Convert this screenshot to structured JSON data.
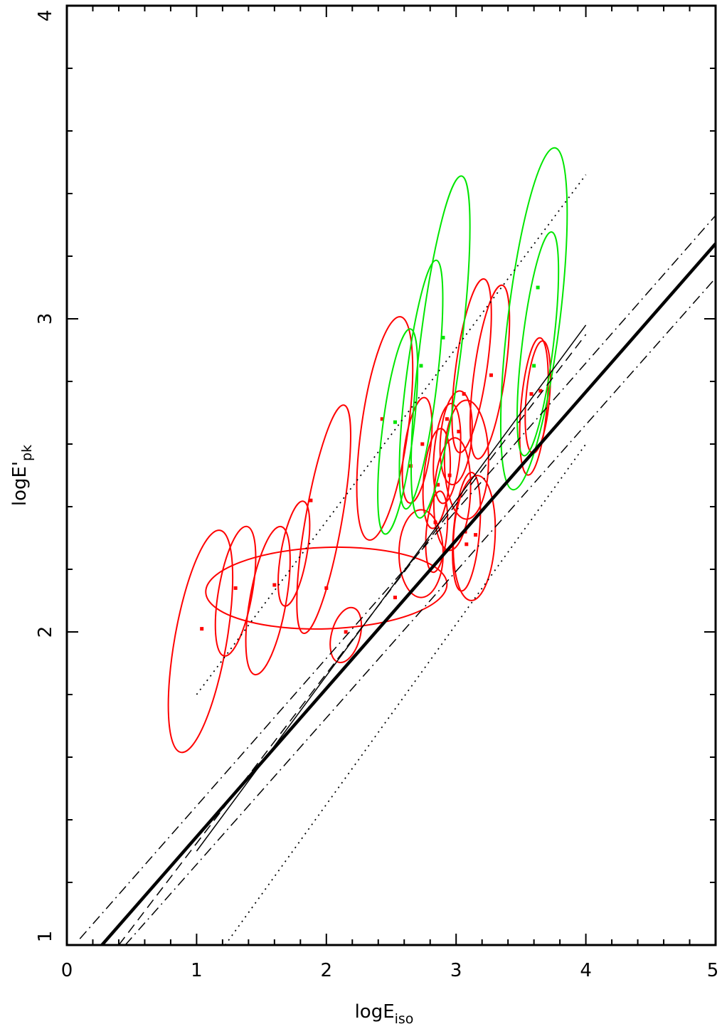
{
  "chart_data": {
    "type": "scatter",
    "title": "",
    "xlabel": "logE",
    "xlabel_sub": "iso",
    "ylabel": "logE'",
    "ylabel_sub": "pk",
    "xlim": [
      0,
      5
    ],
    "ylim": [
      1,
      4
    ],
    "x_ticks": [
      "0",
      "1",
      "2",
      "3",
      "4",
      "5"
    ],
    "y_ticks": [
      "1",
      "2",
      "3",
      "4"
    ],
    "grid": false,
    "colors": {
      "red": "#ff0000",
      "green": "#00e600",
      "black": "#000000"
    },
    "lines": [
      {
        "style": "thick-solid",
        "x": [
          0.27,
          5.0
        ],
        "y": [
          1.0,
          3.24
        ]
      },
      {
        "style": "thin-solid",
        "x": [
          1.0,
          4.0
        ],
        "y": [
          1.3,
          2.98
        ]
      },
      {
        "style": "dash",
        "x": [
          0.4,
          4.0
        ],
        "y": [
          1.0,
          2.95
        ]
      },
      {
        "style": "dash-dot",
        "x": [
          0.1,
          5.0
        ],
        "y": [
          1.02,
          3.33
        ]
      },
      {
        "style": "dash-dot",
        "x": [
          0.45,
          5.0
        ],
        "y": [
          1.0,
          3.13
        ]
      },
      {
        "style": "dot",
        "x": [
          1.0,
          4.0
        ],
        "y": [
          1.8,
          3.46
        ]
      },
      {
        "style": "dot",
        "x": [
          1.22,
          4.0
        ],
        "y": [
          1.0,
          2.6
        ]
      }
    ],
    "series": [
      {
        "color": "red",
        "points": [
          {
            "x": 1.04,
            "y": 2.01
          },
          {
            "x": 1.3,
            "y": 2.14
          },
          {
            "x": 1.6,
            "y": 2.15
          },
          {
            "x": 1.88,
            "y": 2.42
          },
          {
            "x": 2.0,
            "y": 2.14
          },
          {
            "x": 2.15,
            "y": 2.0
          },
          {
            "x": 2.53,
            "y": 2.11
          },
          {
            "x": 2.43,
            "y": 2.68
          },
          {
            "x": 2.65,
            "y": 2.53
          },
          {
            "x": 2.74,
            "y": 2.6
          },
          {
            "x": 2.84,
            "y": 2.35
          },
          {
            "x": 2.86,
            "y": 2.47
          },
          {
            "x": 2.93,
            "y": 2.68
          },
          {
            "x": 2.95,
            "y": 2.5
          },
          {
            "x": 3.02,
            "y": 2.64
          },
          {
            "x": 3.06,
            "y": 2.76
          },
          {
            "x": 3.07,
            "y": 2.32
          },
          {
            "x": 3.08,
            "y": 2.28
          },
          {
            "x": 3.15,
            "y": 2.31
          },
          {
            "x": 3.27,
            "y": 2.82
          },
          {
            "x": 3.58,
            "y": 2.76
          },
          {
            "x": 3.65,
            "y": 2.77
          }
        ],
        "ellipses": [
          {
            "cx": 1.03,
            "cy": 1.97,
            "rx": 0.2,
            "ry": 0.36,
            "rot": 10
          },
          {
            "cx": 1.3,
            "cy": 2.13,
            "rx": 0.13,
            "ry": 0.21,
            "rot": 10
          },
          {
            "cx": 1.55,
            "cy": 2.1,
            "rx": 0.14,
            "ry": 0.24,
            "rot": 10
          },
          {
            "cx": 1.75,
            "cy": 2.25,
            "rx": 0.1,
            "ry": 0.17,
            "rot": 10
          },
          {
            "cx": 2.0,
            "cy": 2.14,
            "rx": 0.93,
            "ry": 0.13,
            "rot": -2
          },
          {
            "cx": 1.98,
            "cy": 2.36,
            "rx": 0.14,
            "ry": 0.37,
            "rot": 10
          },
          {
            "cx": 2.15,
            "cy": 1.99,
            "rx": 0.11,
            "ry": 0.09,
            "rot": 15
          },
          {
            "cx": 2.45,
            "cy": 2.65,
            "rx": 0.18,
            "ry": 0.36,
            "rot": 8
          },
          {
            "cx": 2.7,
            "cy": 2.58,
            "rx": 0.1,
            "ry": 0.17,
            "rot": 8
          },
          {
            "cx": 2.73,
            "cy": 2.25,
            "rx": 0.17,
            "ry": 0.14,
            "rot": 0
          },
          {
            "cx": 2.85,
            "cy": 2.32,
            "rx": 0.08,
            "ry": 0.13,
            "rot": 5
          },
          {
            "cx": 2.85,
            "cy": 2.49,
            "rx": 0.1,
            "ry": 0.16,
            "rot": 5
          },
          {
            "cx": 2.93,
            "cy": 2.57,
            "rx": 0.1,
            "ry": 0.16,
            "rot": 5
          },
          {
            "cx": 2.97,
            "cy": 2.44,
            "rx": 0.14,
            "ry": 0.18,
            "rot": 3
          },
          {
            "cx": 3.0,
            "cy": 2.62,
            "rx": 0.12,
            "ry": 0.15,
            "rot": 5
          },
          {
            "cx": 3.08,
            "cy": 2.55,
            "rx": 0.17,
            "ry": 0.19,
            "rot": 0
          },
          {
            "cx": 3.08,
            "cy": 2.32,
            "rx": 0.1,
            "ry": 0.19,
            "rot": 5
          },
          {
            "cx": 3.14,
            "cy": 2.3,
            "rx": 0.16,
            "ry": 0.2,
            "rot": 3
          },
          {
            "cx": 3.12,
            "cy": 2.85,
            "rx": 0.12,
            "ry": 0.28,
            "rot": 8
          },
          {
            "cx": 3.26,
            "cy": 2.83,
            "rx": 0.12,
            "ry": 0.28,
            "rot": 8
          },
          {
            "cx": 3.6,
            "cy": 2.72,
            "rx": 0.1,
            "ry": 0.22,
            "rot": 5
          },
          {
            "cx": 3.63,
            "cy": 2.75,
            "rx": 0.09,
            "ry": 0.18,
            "rot": 5
          }
        ]
      },
      {
        "color": "green",
        "points": [
          {
            "x": 2.53,
            "y": 2.67
          },
          {
            "x": 2.73,
            "y": 2.85
          },
          {
            "x": 2.9,
            "y": 2.94
          },
          {
            "x": 3.6,
            "y": 2.85
          },
          {
            "x": 3.63,
            "y": 3.1
          }
        ],
        "ellipses": [
          {
            "cx": 2.55,
            "cy": 2.64,
            "rx": 0.12,
            "ry": 0.33,
            "rot": 7
          },
          {
            "cx": 2.73,
            "cy": 2.79,
            "rx": 0.12,
            "ry": 0.4,
            "rot": 7
          },
          {
            "cx": 2.88,
            "cy": 2.91,
            "rx": 0.16,
            "ry": 0.55,
            "rot": 7
          },
          {
            "cx": 3.6,
            "cy": 3.0,
            "rx": 0.2,
            "ry": 0.55,
            "rot": 7
          },
          {
            "cx": 3.63,
            "cy": 2.92,
            "rx": 0.12,
            "ry": 0.36,
            "rot": 7
          }
        ]
      }
    ]
  }
}
